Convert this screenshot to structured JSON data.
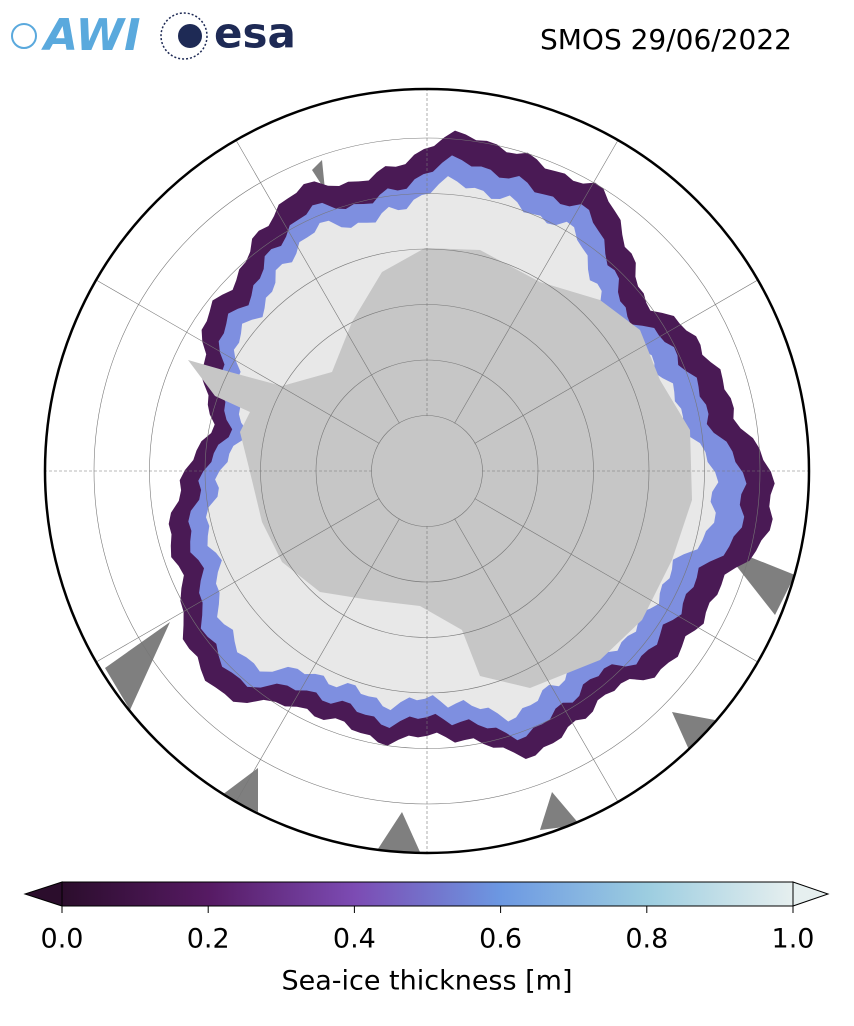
{
  "header": {
    "logo_left": "AWI",
    "logo_right": "esa",
    "title": "SMOS 29/06/2022"
  },
  "colorbar": {
    "label": "Sea-ice thickness [m]",
    "clim": [
      0,
      1
    ],
    "colors": [
      "#2b0d2c",
      "#561a63",
      "#7c4bb3",
      "#6c98e2",
      "#9ccde0",
      "#e6efef"
    ],
    "ticks": [
      {
        "value": 0,
        "label": "0.0"
      },
      {
        "value": 0.2,
        "label": "0.2"
      },
      {
        "value": 0.4,
        "label": "0.4"
      },
      {
        "value": 0.6,
        "label": "0.6"
      },
      {
        "value": 0.8,
        "label": "0.8"
      },
      {
        "value": 1,
        "label": "1.0"
      }
    ]
  }
}
